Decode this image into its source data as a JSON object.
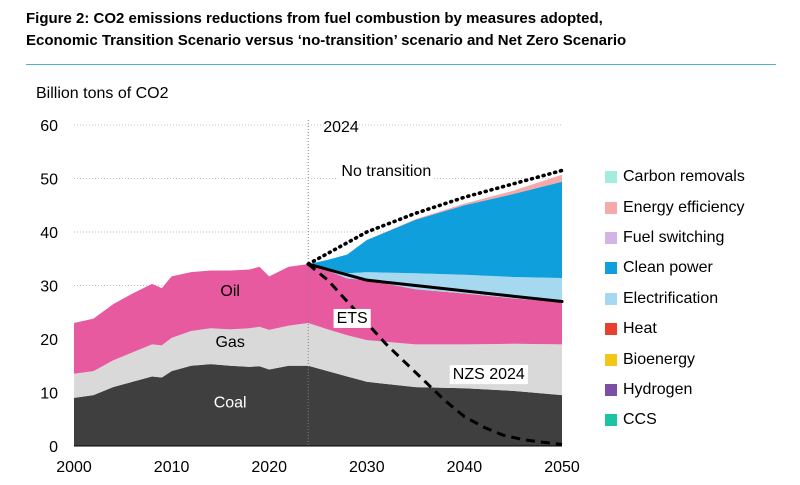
{
  "figure": {
    "title_line1": "Figure 2: CO2 emissions reductions from fuel combustion by measures adopted,",
    "title_line2": "Economic Transition Scenario versus ‘no-transition’ scenario and Net Zero Scenario",
    "rule_color": "#4fb4c8"
  },
  "chart_data": {
    "type": "area",
    "ylabel": "Billion tons of CO2",
    "xlabel": "",
    "xlim": [
      2000,
      2050
    ],
    "ylim": [
      0,
      60
    ],
    "x_ticks": [
      "2000",
      "2010",
      "2020",
      "2030",
      "2040",
      "2050"
    ],
    "y_ticks": [
      "0",
      "10",
      "20",
      "30",
      "40",
      "50",
      "60"
    ],
    "grid": "horizontal dotted",
    "divider": {
      "x": 2024,
      "label": "2024"
    },
    "stacked_series": [
      {
        "name": "Coal",
        "color": "#3f3f3f",
        "x": [
          2000,
          2002,
          2004,
          2006,
          2008,
          2009,
          2010,
          2012,
          2014,
          2016,
          2018,
          2019,
          2020,
          2022,
          2024,
          2026,
          2028,
          2030,
          2035,
          2040,
          2045,
          2050
        ],
        "values": [
          9.0,
          9.5,
          11.0,
          12.0,
          13.0,
          12.8,
          14.0,
          15.0,
          15.3,
          15.0,
          14.8,
          14.9,
          14.3,
          15.0,
          15.0,
          14.0,
          13.0,
          12.0,
          11.0,
          10.8,
          10.3,
          9.5
        ]
      },
      {
        "name": "Gas",
        "color": "#d9d9d9",
        "x": [
          2000,
          2002,
          2004,
          2006,
          2008,
          2009,
          2010,
          2012,
          2014,
          2016,
          2018,
          2019,
          2020,
          2022,
          2024,
          2026,
          2028,
          2030,
          2035,
          2040,
          2045,
          2050
        ],
        "values": [
          4.5,
          4.5,
          5.0,
          5.5,
          6.0,
          6.0,
          6.2,
          6.5,
          6.7,
          6.8,
          7.2,
          7.4,
          7.4,
          7.5,
          8.0,
          7.8,
          7.7,
          7.8,
          8.0,
          8.2,
          8.8,
          9.5
        ]
      },
      {
        "name": "Oil",
        "color": "#e85aa0",
        "x": [
          2000,
          2002,
          2004,
          2006,
          2008,
          2009,
          2010,
          2012,
          2014,
          2016,
          2018,
          2019,
          2020,
          2022,
          2024,
          2026,
          2028,
          2030,
          2035,
          2040,
          2045,
          2050
        ],
        "values": [
          9.5,
          9.8,
          10.5,
          11.0,
          11.3,
          10.7,
          11.5,
          11.0,
          10.8,
          11.0,
          11.0,
          11.2,
          10.0,
          11.0,
          11.0,
          11.0,
          10.6,
          11.2,
          10.3,
          9.5,
          8.5,
          7.9
        ]
      },
      {
        "name": "Electrification",
        "color": "#a6d8f0",
        "x": [
          2024,
          2026,
          2028,
          2030,
          2035,
          2040,
          2045,
          2050
        ],
        "values": [
          0.0,
          0.5,
          1.0,
          1.5,
          3.0,
          3.5,
          4.0,
          4.5
        ]
      },
      {
        "name": "Clean power",
        "color": "#0e9fdc",
        "x": [
          2024,
          2026,
          2028,
          2030,
          2035,
          2040,
          2045,
          2050
        ],
        "values": [
          0.0,
          1.5,
          3.5,
          6.0,
          10.0,
          13.0,
          15.5,
          18.0
        ]
      },
      {
        "name": "Energy efficiency",
        "color": "#f7a8a8",
        "x": [
          2024,
          2026,
          2028,
          2030,
          2035,
          2040,
          2045,
          2050
        ],
        "values": [
          0.0,
          0.0,
          0.0,
          0.0,
          0.1,
          0.3,
          0.6,
          1.3
        ]
      }
    ],
    "lines": [
      {
        "name": "No transition",
        "style": "dotted",
        "x": [
          2024,
          2026,
          2028,
          2030,
          2035,
          2040,
          2045,
          2050
        ],
        "values": [
          34.0,
          36.0,
          38.0,
          40.0,
          43.5,
          46.5,
          49.0,
          51.5
        ]
      },
      {
        "name": "ETS",
        "style": "solid",
        "x": [
          2024,
          2026,
          2028,
          2030,
          2035,
          2040,
          2045,
          2050
        ],
        "values": [
          34.0,
          33.0,
          32.0,
          31.0,
          30.0,
          29.0,
          28.0,
          27.0
        ]
      },
      {
        "name": "NZS 2024",
        "style": "dashed",
        "x": [
          2024,
          2026,
          2028,
          2030,
          2032,
          2034,
          2036,
          2038,
          2040,
          2042,
          2044,
          2046,
          2048,
          2050
        ],
        "values": [
          34.0,
          31.0,
          27.0,
          23.0,
          19.0,
          15.5,
          12.0,
          8.5,
          5.5,
          3.5,
          2.0,
          1.2,
          0.7,
          0.3
        ]
      }
    ],
    "in_chart_labels": [
      {
        "text": "Oil",
        "x": 2016,
        "y": 28
      },
      {
        "text": "Gas",
        "x": 2016,
        "y": 18.5
      },
      {
        "text": "Coal",
        "x": 2016,
        "y": 7.2
      },
      {
        "text": "No transition",
        "x": 2032,
        "y": 50.5
      },
      {
        "text": "ETS",
        "x": 2028.5,
        "y": 23
      },
      {
        "text": "NZS 2024",
        "x": 2042.5,
        "y": 12.5
      }
    ],
    "legend": [
      {
        "name": "Carbon removals",
        "color": "#a5ece0"
      },
      {
        "name": "Energy efficiency",
        "color": "#f7a8a8"
      },
      {
        "name": "Fuel switching",
        "color": "#d4b4e6"
      },
      {
        "name": "Clean power",
        "color": "#0e9fdc"
      },
      {
        "name": "Electrification",
        "color": "#a6d8f0"
      },
      {
        "name": "Heat",
        "color": "#e8402c"
      },
      {
        "name": "Bioenergy",
        "color": "#f5c518"
      },
      {
        "name": "Hydrogen",
        "color": "#7a4fa6"
      },
      {
        "name": "CCS",
        "color": "#1bc4a4"
      }
    ],
    "legend_placement": "right"
  }
}
